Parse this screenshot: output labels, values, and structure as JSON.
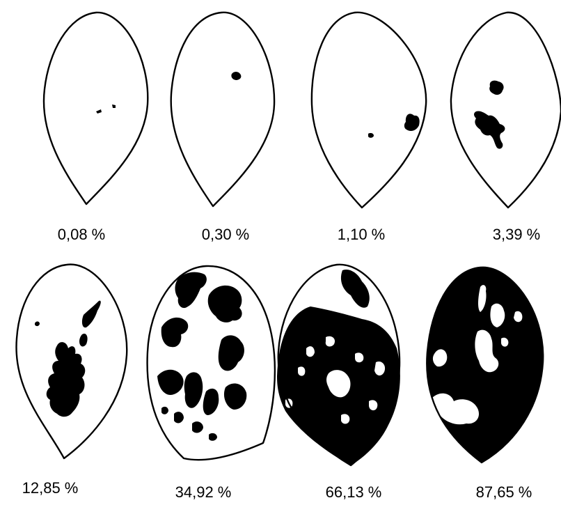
{
  "figure": {
    "leaves": [
      {
        "label": "0,08 %"
      },
      {
        "label": "0,30 %"
      },
      {
        "label": "1,10 %"
      },
      {
        "label": "3,39 %"
      },
      {
        "label": "12,85 %"
      },
      {
        "label": "34,92 %"
      },
      {
        "label": "66,13 %"
      },
      {
        "label": "87,65 %"
      }
    ],
    "colors": {
      "ink": "#000000",
      "background": "#ffffff"
    }
  }
}
